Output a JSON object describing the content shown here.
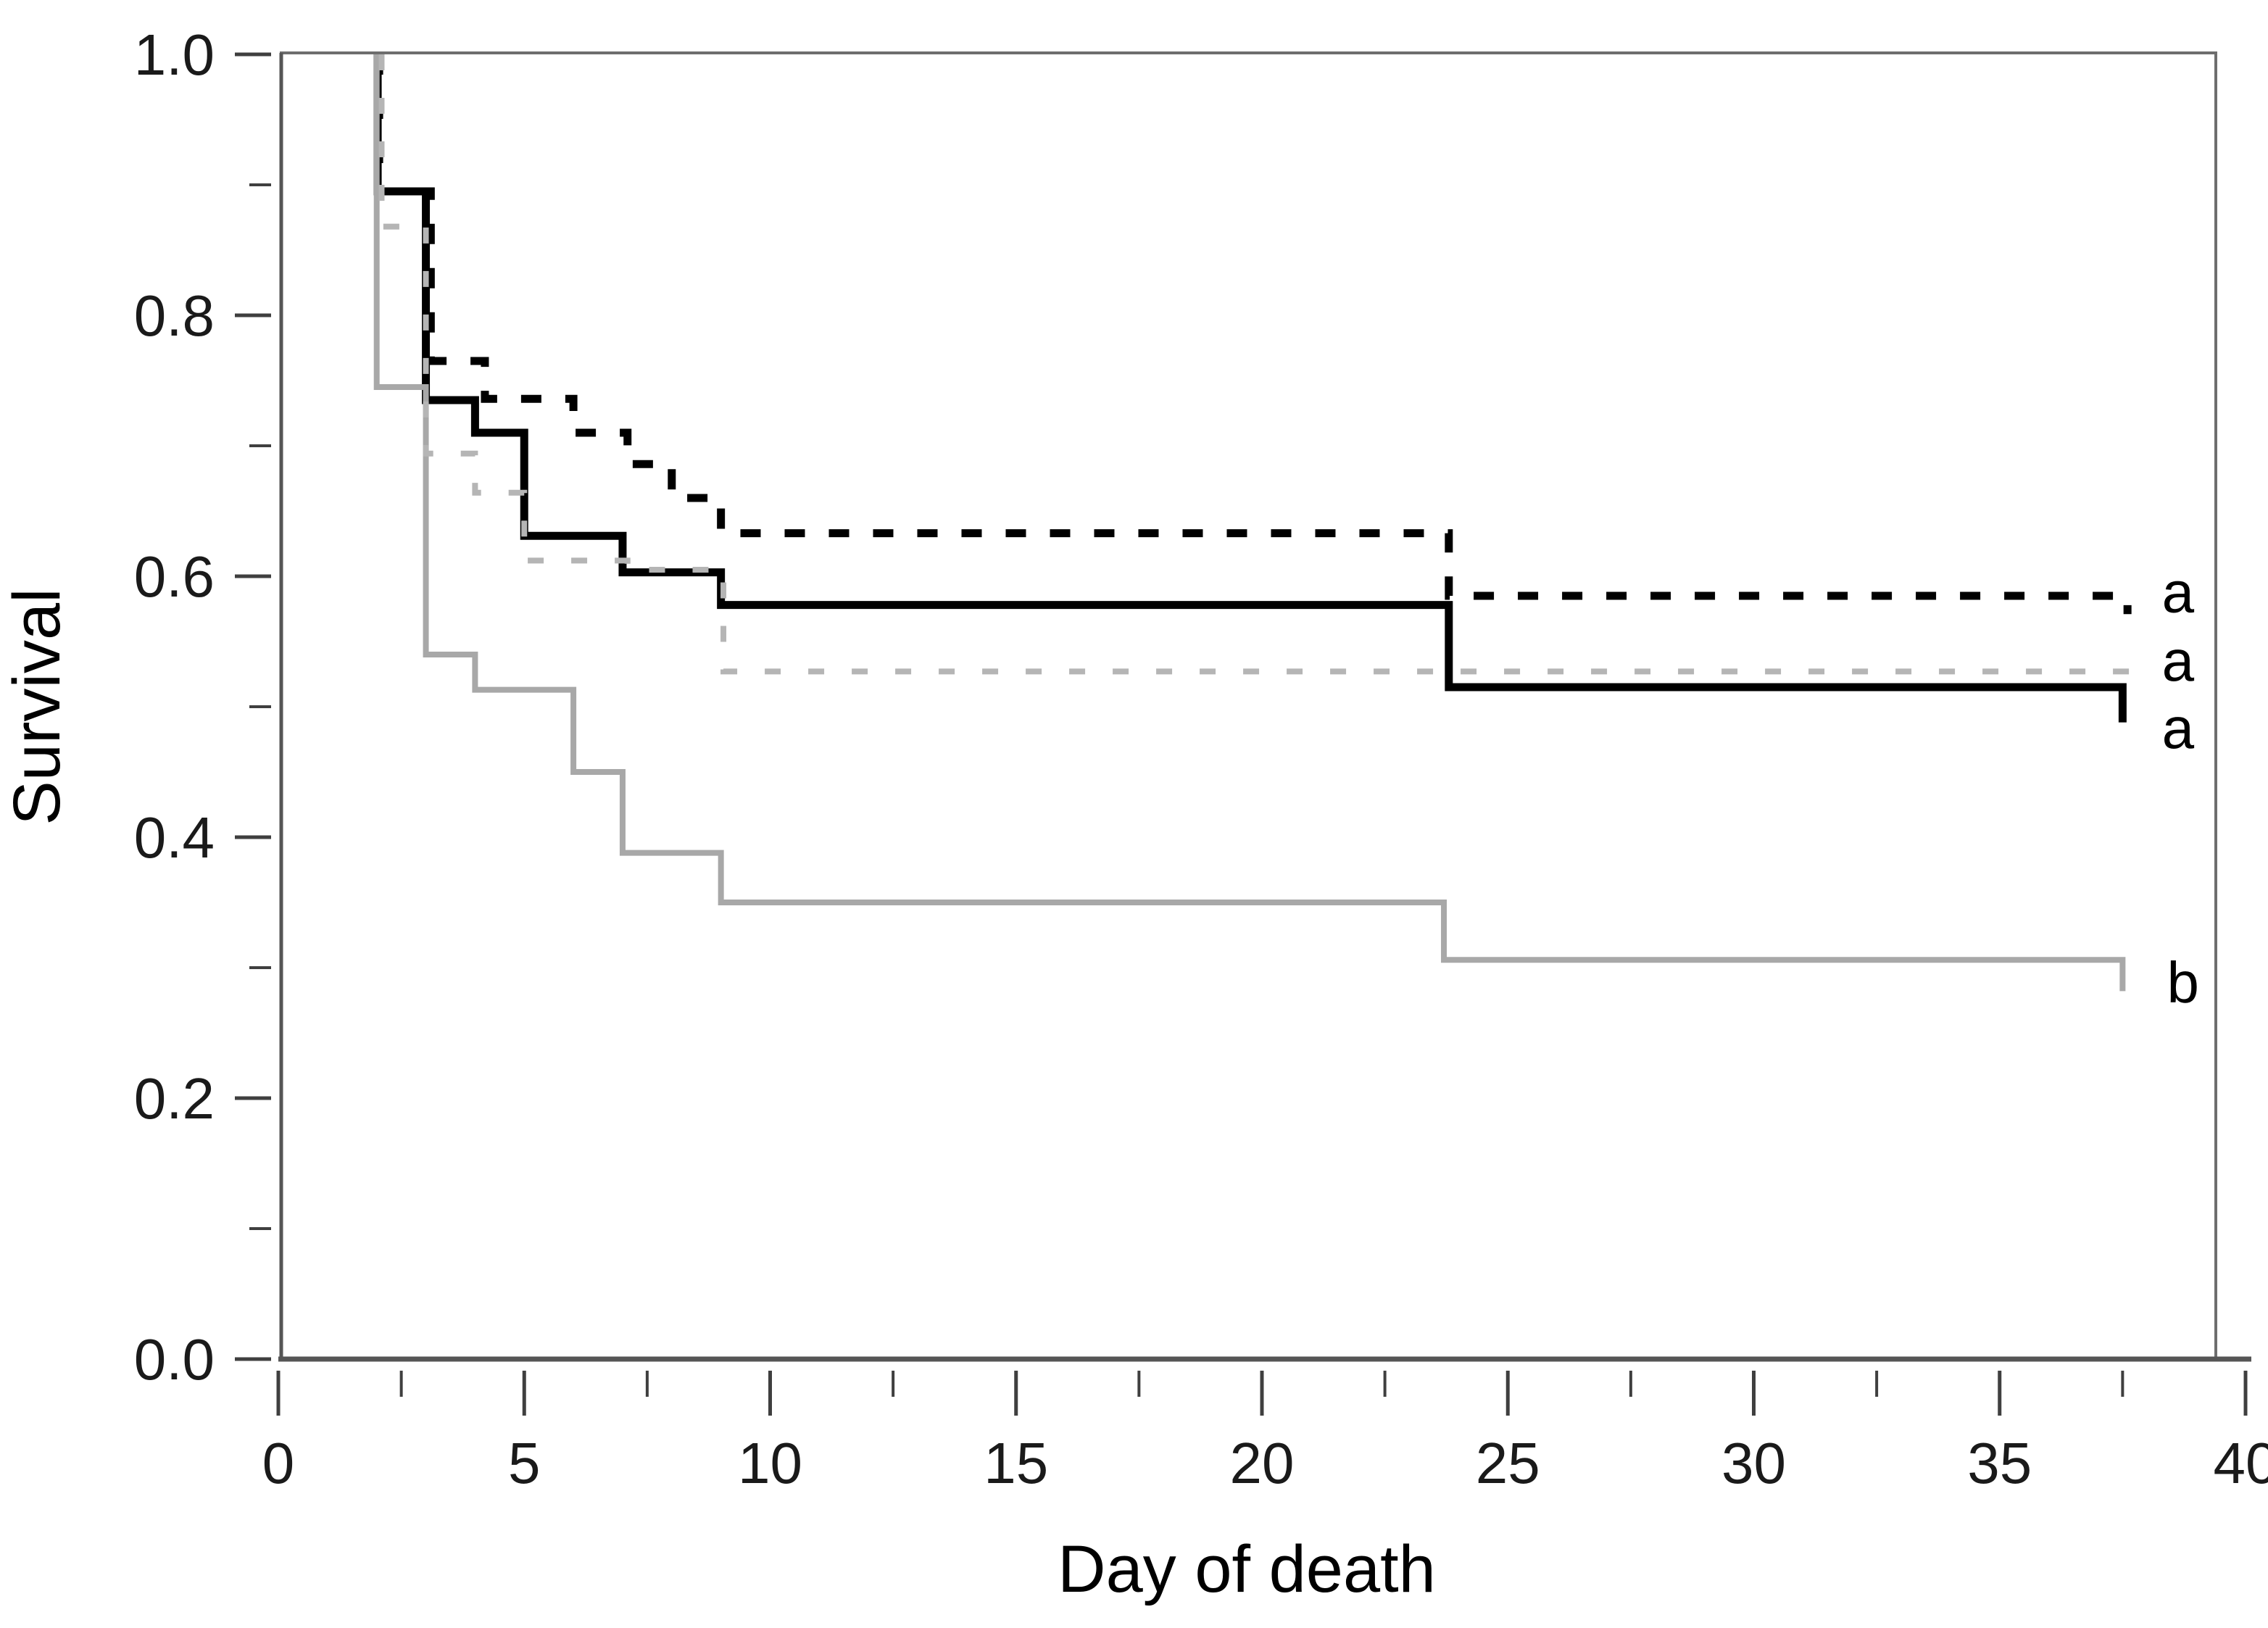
{
  "figure": {
    "kind": "kaplan-meier-survival-plot",
    "background": "#ffffff"
  },
  "chart_data": {
    "type": "line",
    "subtype": "step-survival-curves",
    "title": "",
    "xlabel": "Day of death",
    "ylabel": "Survival",
    "xlim": [
      0,
      40
    ],
    "ylim": [
      0.0,
      1.0
    ],
    "grid": false,
    "legend_position": "right-end-of-curves",
    "frame_color": "#6e6e6e",
    "axis_line_color": "#555555",
    "tick_color": "#3f3f3f",
    "tick_label_color": "#1a1a1a",
    "x_ticks": {
      "major": [
        {
          "v": 0,
          "label": "0"
        },
        {
          "v": 5,
          "label": "5"
        },
        {
          "v": 10,
          "label": "10"
        },
        {
          "v": 15,
          "label": "15"
        },
        {
          "v": 20,
          "label": "20"
        },
        {
          "v": 25,
          "label": "25"
        },
        {
          "v": 30,
          "label": "30"
        },
        {
          "v": 35,
          "label": "35"
        },
        {
          "v": 40,
          "label": "40"
        }
      ],
      "minor": [
        2.5,
        7.5,
        12.5,
        17.5,
        22.5,
        27.5,
        32.5,
        37.5
      ]
    },
    "y_ticks": {
      "major": [
        {
          "v": 0.0,
          "label": "0.0"
        },
        {
          "v": 0.2,
          "label": "0.2"
        },
        {
          "v": 0.4,
          "label": "0.4"
        },
        {
          "v": 0.6,
          "label": "0.6"
        },
        {
          "v": 0.8,
          "label": "0.8"
        },
        {
          "v": 1.0,
          "label": "1.0"
        }
      ],
      "minor": [
        0.1,
        0.3,
        0.5,
        0.7,
        0.9
      ]
    },
    "series": [
      {
        "name": "group-black-dashed",
        "end_label": "a",
        "color": "#000000",
        "line_style": "dashed",
        "dash": [
          28,
          33
        ],
        "width": 11,
        "start_survival": 1.0,
        "steps": [
          [
            2.05,
            0.895
          ],
          [
            3.1,
            0.765
          ],
          [
            4.2,
            0.736
          ],
          [
            6.0,
            0.71
          ],
          [
            7.1,
            0.686
          ],
          [
            8.0,
            0.66
          ],
          [
            9.0,
            0.633
          ],
          [
            23.8,
            0.585
          ],
          [
            37.6,
            0.571
          ]
        ],
        "end_day": 37.6
      },
      {
        "name": "group-black-solid",
        "end_label": "a",
        "color": "#000000",
        "line_style": "solid",
        "dash": null,
        "width": 11,
        "start_survival": 1.0,
        "steps": [
          [
            2.02,
            0.895
          ],
          [
            3.0,
            0.735
          ],
          [
            4.0,
            0.71
          ],
          [
            5.0,
            0.631
          ],
          [
            7.0,
            0.603
          ],
          [
            9.0,
            0.578
          ],
          [
            23.8,
            0.515
          ],
          [
            37.5,
            0.488
          ]
        ],
        "end_day": 37.5
      },
      {
        "name": "group-gray-solid",
        "end_label": "b",
        "color": "#a8a8a8",
        "line_style": "solid",
        "dash": null,
        "width": 8,
        "start_survival": 1.0,
        "steps": [
          [
            2.0,
            0.745
          ],
          [
            3.0,
            0.54
          ],
          [
            4.0,
            0.513
          ],
          [
            6.0,
            0.45
          ],
          [
            7.0,
            0.388
          ],
          [
            9.0,
            0.35
          ],
          [
            23.7,
            0.306
          ],
          [
            37.5,
            0.282
          ]
        ],
        "end_day": 37.5
      },
      {
        "name": "group-gray-dashed",
        "end_label": "a",
        "color": "#b5b5b5",
        "line_style": "dashed",
        "dash": [
          22,
          38
        ],
        "width": 8,
        "start_survival": 1.0,
        "steps": [
          [
            2.1,
            0.868
          ],
          [
            3.0,
            0.694
          ],
          [
            4.0,
            0.664
          ],
          [
            5.0,
            0.612
          ],
          [
            7.1,
            0.605
          ],
          [
            9.05,
            0.527
          ]
        ],
        "end_day": 37.8
      }
    ],
    "end_labels": [
      {
        "text": "a",
        "day": 38.3,
        "survival": 0.588,
        "series": "group-black-dashed"
      },
      {
        "text": "a",
        "day": 38.3,
        "survival": 0.5355,
        "series": "group-gray-dashed"
      },
      {
        "text": "a",
        "day": 38.3,
        "survival": 0.484,
        "series": "group-black-solid"
      },
      {
        "text": "b",
        "day": 38.4,
        "survival": 0.289,
        "series": "group-gray-solid"
      }
    ]
  }
}
